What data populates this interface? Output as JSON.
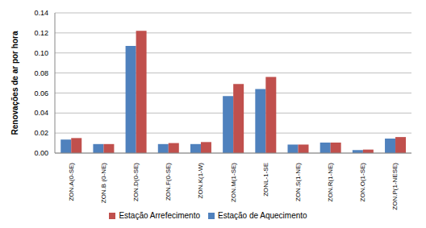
{
  "chart_data": {
    "type": "bar",
    "y_label": "Renovações de ar por hora",
    "categories": [
      "ZON.A(0-SE)",
      "ZON.B (0-NE)",
      "ZON.D(0-SE)",
      "ZON.F(0-SE)",
      "ZON.K(1-W)",
      "ZON.M(1-SE)",
      "ZONL-1-SE",
      "ZON.S(1-NE)",
      "ZON.R(1-NE)",
      "ZON.O(1-SE)",
      "ZON.P(1-NESE)"
    ],
    "series": [
      {
        "name": "Estação de Aquecimento",
        "color": "#4f81bd",
        "values": [
          0.0135,
          0.009,
          0.107,
          0.009,
          0.009,
          0.057,
          0.064,
          0.0085,
          0.0105,
          0.003,
          0.0145
        ]
      },
      {
        "name": "Estação Arrefecimento",
        "color": "#c0504d",
        "values": [
          0.015,
          0.009,
          0.122,
          0.01,
          0.011,
          0.069,
          0.076,
          0.0085,
          0.0105,
          0.0035,
          0.016
        ]
      }
    ],
    "ylim": [
      0,
      0.14
    ],
    "yticks": [
      {
        "value": 0,
        "label": "0.00"
      },
      {
        "value": 0.02,
        "label": "0.02"
      },
      {
        "value": 0.04,
        "label": "0.04"
      },
      {
        "value": 0.06,
        "label": "0.06"
      },
      {
        "value": 0.08,
        "label": "0.08"
      },
      {
        "value": 0.1,
        "label": "0.10"
      },
      {
        "value": 0.12,
        "label": "0.12"
      },
      {
        "value": 0.14,
        "label": "0.14"
      }
    ],
    "grid": true,
    "legend": "bottom"
  }
}
